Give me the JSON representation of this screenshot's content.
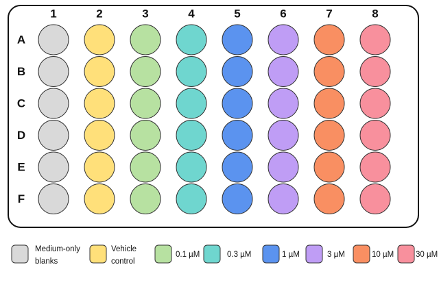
{
  "plate": {
    "columns": [
      "1",
      "2",
      "3",
      "4",
      "5",
      "6",
      "7",
      "8"
    ],
    "rows": [
      "A",
      "B",
      "C",
      "D",
      "E",
      "F"
    ]
  },
  "legend": [
    {
      "lines": [
        "Medium-only",
        "blanks"
      ],
      "color": "#d9d9d9"
    },
    {
      "lines": [
        "Vehicle",
        "control"
      ],
      "color": "#ffe07a"
    },
    {
      "lines": [
        "0.1 µM"
      ],
      "color": "#b7e1a1"
    },
    {
      "lines": [
        "0.3 µM"
      ],
      "color": "#6fd6cf"
    },
    {
      "lines": [
        "1 µM"
      ],
      "color": "#5b93ef"
    },
    {
      "lines": [
        "3 µM"
      ],
      "color": "#bf9df5"
    },
    {
      "lines": [
        "10 µM"
      ],
      "color": "#f98f62"
    },
    {
      "lines": [
        "30 µM"
      ],
      "color": "#f8909d"
    }
  ]
}
